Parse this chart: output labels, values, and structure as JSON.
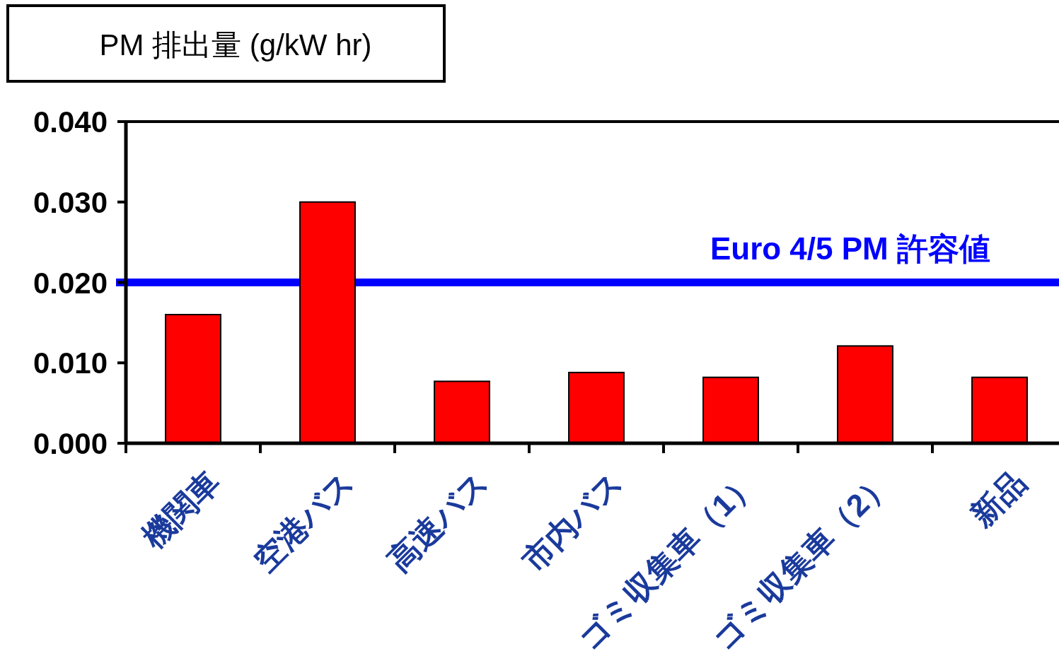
{
  "chart_data": {
    "type": "bar",
    "title": "PM 排出量 (g/kW hr)",
    "categories": [
      "機関車",
      "空港バス",
      "高速バス",
      "市内バス",
      "ゴミ収集車（1）",
      "ゴミ収集車（2）",
      "新品"
    ],
    "values": [
      0.016,
      0.03,
      0.0077,
      0.0088,
      0.0082,
      0.0121,
      0.0082
    ],
    "color": "#ff0000",
    "ylim": [
      0,
      0.04
    ],
    "yticks": [
      {
        "value": 0,
        "label": "0.000"
      },
      {
        "value": 0.01,
        "label": "0.010"
      },
      {
        "value": 0.02,
        "label": "0.020"
      },
      {
        "value": 0.03,
        "label": "0.030"
      },
      {
        "value": 0.04,
        "label": "0.040"
      }
    ],
    "ref_lines": [
      {
        "axis": "y",
        "value": 0.02,
        "label": "Euro 4/5 PM 許容値",
        "color": "#0000ff"
      }
    ],
    "grid": false
  }
}
